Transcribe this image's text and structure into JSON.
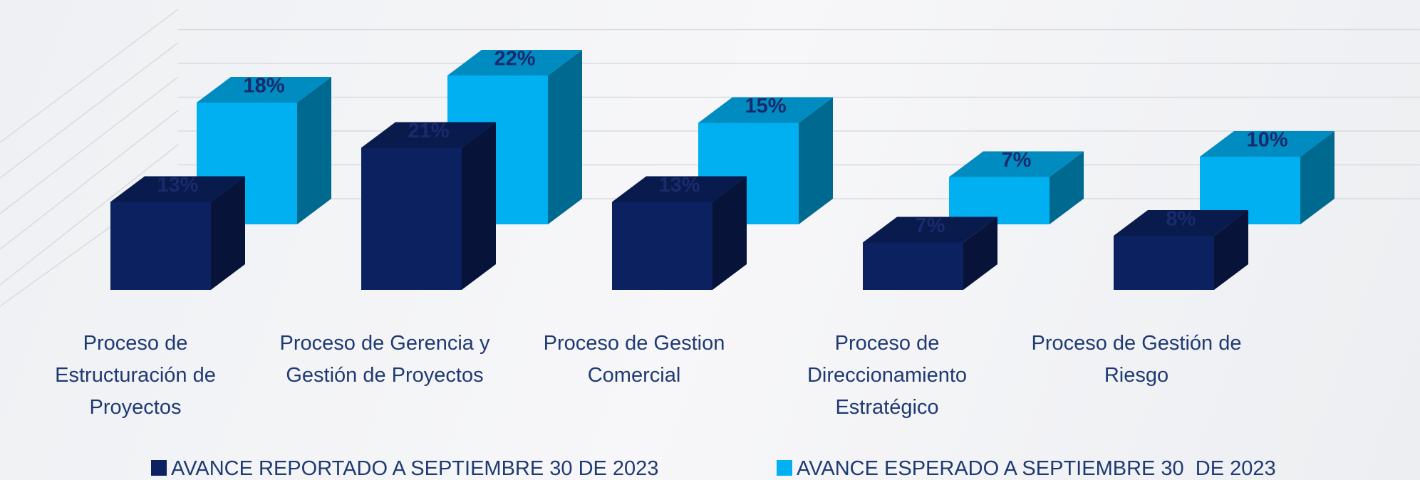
{
  "chart_data": {
    "type": "bar3d",
    "categories": [
      "Proceso de Estructuración de Proyectos",
      "Proceso de Gerencia y Gestión de Proyectos",
      "Proceso de Gestion Comercial",
      "Proceso de Direccionamiento Estratégico",
      "Proceso de Gestión de Riesgo"
    ],
    "series": [
      {
        "name": "AVANCE REPORTADO A SEPTIEMBRE 30 DE 2023",
        "color": "#0c2160",
        "values": [
          13,
          21,
          13,
          7,
          8
        ],
        "value_labels": [
          "13%",
          "21%",
          "13%",
          "7%",
          "8%"
        ]
      },
      {
        "name": "AVANCE ESPERADO A SEPTIEMBRE 30  DE 2023",
        "color": "#00b0f0",
        "values": [
          18,
          22,
          15,
          7,
          10
        ],
        "value_labels": [
          "18%",
          "22%",
          "15%",
          "7%",
          "10%"
        ]
      }
    ],
    "ylim": [
      0,
      30
    ],
    "yticks": [
      0,
      5,
      10,
      15,
      20,
      25,
      30
    ],
    "grid": true,
    "legend": "bottom"
  }
}
